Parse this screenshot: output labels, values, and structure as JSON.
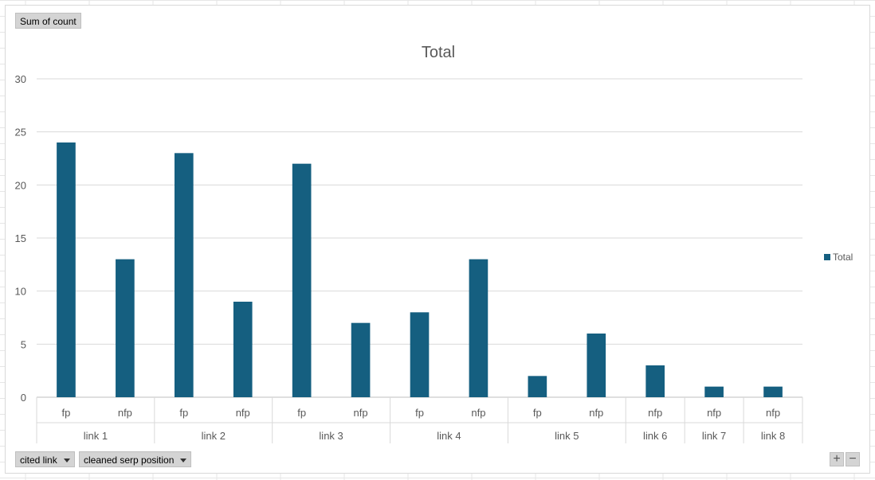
{
  "buttons": {
    "values_field": "Sum of count",
    "axis_field_1": "cited link",
    "axis_field_2": "cleaned serp position",
    "zoom_in": "+",
    "zoom_out": "−"
  },
  "colors": {
    "bar": "#155f80",
    "grid": "#d9d9d9",
    "text": "#595959"
  },
  "chart_data": {
    "type": "bar",
    "title": "Total",
    "xlabel": "",
    "ylabel": "",
    "ylim": [
      0,
      30
    ],
    "yticks": [
      0,
      5,
      10,
      15,
      20,
      25,
      30
    ],
    "grid": true,
    "legend_position": "right",
    "groups": [
      {
        "label": "link 1",
        "categories": [
          "fp",
          "nfp"
        ]
      },
      {
        "label": "link 2",
        "categories": [
          "fp",
          "nfp"
        ]
      },
      {
        "label": "link 3",
        "categories": [
          "fp",
          "nfp"
        ]
      },
      {
        "label": "link 4",
        "categories": [
          "fp",
          "nfp"
        ]
      },
      {
        "label": "link 5",
        "categories": [
          "fp",
          "nfp"
        ]
      },
      {
        "label": "link 6",
        "categories": [
          "nfp"
        ]
      },
      {
        "label": "link 7",
        "categories": [
          "nfp"
        ]
      },
      {
        "label": "link 8",
        "categories": [
          "nfp"
        ]
      }
    ],
    "series": [
      {
        "name": "Total",
        "values": [
          24,
          13,
          23,
          9,
          22,
          7,
          8,
          13,
          2,
          6,
          3,
          1,
          1
        ]
      }
    ]
  }
}
